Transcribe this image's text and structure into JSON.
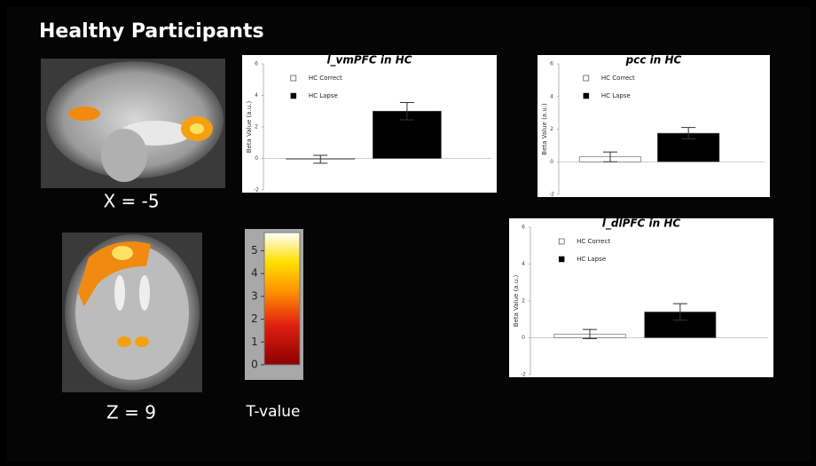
{
  "title": "Healthy Participants",
  "images": [
    {
      "label": "X = -5"
    },
    {
      "label": "Z = 9"
    }
  ],
  "colorbar": {
    "label": "T-value",
    "clim": [
      0,
      5.8
    ],
    "ticks": [
      0,
      1,
      2,
      3,
      4,
      5
    ]
  },
  "chart_data": [
    {
      "type": "bar",
      "title": "l_vmPFC in HC",
      "y_label": "Beta Value (a.u.)",
      "categories": [
        null
      ],
      "ylim": [
        -2,
        6
      ],
      "yticks": [
        -2,
        0,
        2,
        4,
        6
      ],
      "series": [
        {
          "name": "HC Correct",
          "color": "#ffffff",
          "values": [
            -0.05
          ],
          "errors": [
            0.25
          ]
        },
        {
          "name": "HC Lapse",
          "color": "#000000",
          "values": [
            3.0
          ],
          "errors": [
            0.55
          ]
        }
      ]
    },
    {
      "type": "bar",
      "title": "pcc in HC",
      "y_label": "Beta Value (a.u.)",
      "categories": [
        null
      ],
      "ylim": [
        -2,
        6
      ],
      "yticks": [
        -2,
        0,
        2,
        4,
        6
      ],
      "series": [
        {
          "name": "HC Correct",
          "color": "#ffffff",
          "values": [
            0.3
          ],
          "errors": [
            0.3
          ]
        },
        {
          "name": "HC Lapse",
          "color": "#000000",
          "values": [
            1.75
          ],
          "errors": [
            0.35
          ]
        }
      ]
    },
    {
      "type": "bar",
      "title": "l_dlPFC in HC",
      "y_label": "Beta Value (a.u.)",
      "categories": [
        null
      ],
      "ylim": [
        -2,
        6
      ],
      "yticks": [
        -2,
        0,
        2,
        4,
        6
      ],
      "series": [
        {
          "name": "HC Correct",
          "color": "#ffffff",
          "values": [
            0.2
          ],
          "errors": [
            0.25
          ]
        },
        {
          "name": "HC Lapse",
          "color": "#000000",
          "values": [
            1.4
          ],
          "errors": [
            0.45
          ]
        }
      ]
    }
  ]
}
